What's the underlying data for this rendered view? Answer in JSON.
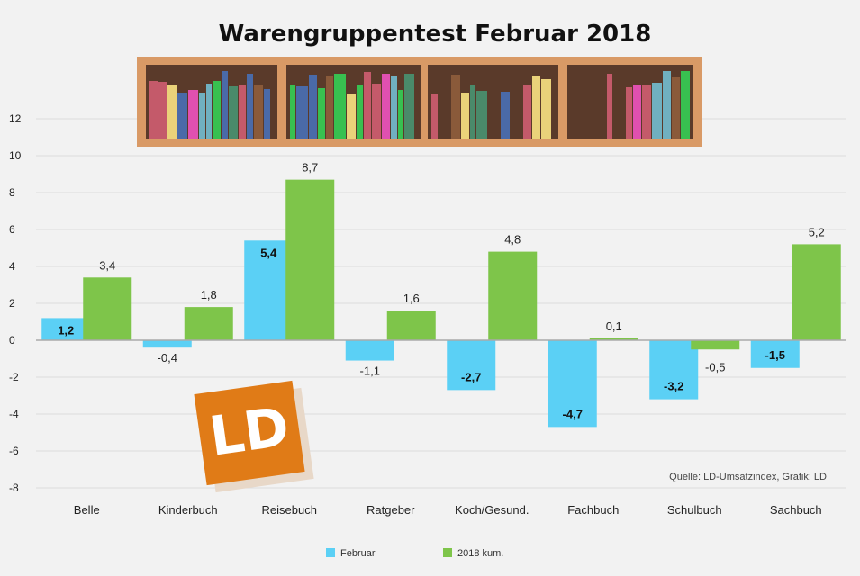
{
  "chart_data": {
    "type": "bar",
    "title": "Warengruppentest Februar 2018",
    "categories": [
      "Belle",
      "Kinderbuch",
      "Reisebuch",
      "Ratgeber",
      "Koch/Gesund.",
      "Fachbuch",
      "Schulbuch",
      "Sachbuch"
    ],
    "series": [
      {
        "name": "Februar",
        "color": "#5bd0f5",
        "values": [
          1.2,
          -0.4,
          5.4,
          -1.1,
          -2.7,
          -4.7,
          -3.2,
          -1.5
        ]
      },
      {
        "name": "2018 kum.",
        "color": "#7ec54a",
        "values": [
          3.4,
          1.8,
          8.7,
          1.6,
          4.8,
          0.1,
          -0.5,
          5.2
        ]
      }
    ],
    "value_labels": [
      [
        "1,2",
        "-0,4",
        "5,4",
        "-1,1",
        "-2,7",
        "-4,7",
        "-3,2",
        "-1,5"
      ],
      [
        "3,4",
        "1,8",
        "8,7",
        "1,6",
        "4,8",
        "0,1",
        "-0,5",
        "5,2"
      ]
    ],
    "ylim": [
      -8,
      12
    ],
    "yticks": [
      12,
      10,
      8,
      6,
      4,
      2,
      0,
      -2,
      -4,
      -6,
      -8
    ],
    "grid": true,
    "legend_position": "bottom",
    "source": "Quelle: LD-Umsatzindex, Grafik: LD"
  },
  "logo": {
    "text": "LD",
    "color": "#e07b17"
  },
  "decor": {
    "shelf_color": "#d99a66",
    "book_colors": [
      "#c45a6a",
      "#4a8a6a",
      "#ead27a",
      "#4a6aa8",
      "#e050b0",
      "#38c050",
      "#8a5a3a",
      "#70b0c0"
    ]
  }
}
